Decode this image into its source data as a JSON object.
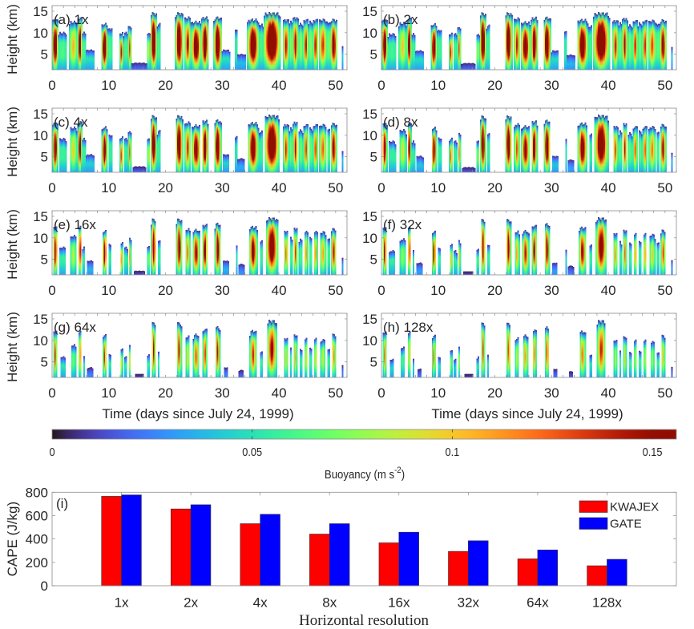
{
  "figure": {
    "background": "#ffffff",
    "text_color": "#262626",
    "axes_color": "#8c8c8c"
  },
  "chart_data": [
    {
      "type": "heatmap",
      "variable": "Buoyancy",
      "xlabel": "Time (days since July 24, 1999)",
      "ylabel": "Height (km)",
      "xlim": [
        0,
        52
      ],
      "ylim": [
        1.4,
        16.3
      ],
      "xticks": [
        0,
        10,
        20,
        30,
        40,
        50
      ],
      "minor_xtick_step": 2,
      "yticks": [
        5,
        10,
        15
      ],
      "colormap": "turbo",
      "colorbar": {
        "range": [
          0,
          0.156
        ],
        "ticks": [
          0,
          0.05,
          0.1,
          0.15
        ],
        "tick_labels": [
          "0",
          "0.05",
          "0.1",
          "0.15"
        ],
        "label": "Buoyancy (m s",
        "label_sup": "-2",
        "label_end": ")",
        "placement": "bottom"
      },
      "event_fields": [
        "t_start_day",
        "t_end_day",
        "cloud_top_km",
        "peak_buoyancy_m_s2"
      ],
      "events": [
        [
          0.0,
          1.1,
          13.0,
          0.16
        ],
        [
          1.1,
          2.6,
          10.0,
          0.06
        ],
        [
          3.0,
          4.5,
          12.5,
          0.09
        ],
        [
          4.5,
          5.3,
          13.5,
          0.15
        ],
        [
          5.3,
          5.9,
          10.0,
          0.06
        ],
        [
          5.9,
          7.5,
          6.0,
          0.04
        ],
        [
          8.7,
          9.8,
          12.0,
          0.16
        ],
        [
          9.8,
          10.6,
          11.0,
          0.06
        ],
        [
          11.9,
          12.6,
          10.0,
          0.12
        ],
        [
          12.6,
          13.4,
          10.0,
          0.06
        ],
        [
          13.4,
          14.0,
          11.5,
          0.11
        ],
        [
          14.0,
          16.7,
          3.0,
          0.03
        ],
        [
          16.7,
          17.3,
          10.0,
          0.08
        ],
        [
          17.3,
          18.5,
          14.5,
          0.17
        ],
        [
          18.5,
          19.1,
          12.0,
          0.06
        ],
        [
          21.7,
          23.1,
          14.5,
          0.17
        ],
        [
          23.3,
          24.5,
          13.5,
          0.12
        ],
        [
          24.5,
          26.3,
          12.5,
          0.15
        ],
        [
          26.3,
          27.6,
          13.5,
          0.16
        ],
        [
          28.5,
          29.9,
          13.5,
          0.17
        ],
        [
          29.9,
          31.3,
          6.0,
          0.04
        ],
        [
          32.3,
          32.6,
          11.0,
          0.04
        ],
        [
          32.6,
          34.1,
          5.0,
          0.035
        ],
        [
          34.4,
          36.5,
          13.0,
          0.16
        ],
        [
          36.5,
          37.2,
          12.0,
          0.06
        ],
        [
          37.2,
          40.3,
          14.5,
          0.18
        ],
        [
          40.7,
          41.8,
          13.0,
          0.12
        ],
        [
          41.8,
          42.4,
          12.5,
          0.07
        ],
        [
          42.4,
          43.4,
          13.5,
          0.13
        ],
        [
          43.4,
          44.3,
          12.0,
          0.07
        ],
        [
          44.3,
          45.2,
          13.0,
          0.12
        ],
        [
          45.2,
          46.0,
          12.5,
          0.07
        ],
        [
          46.0,
          46.9,
          13.0,
          0.12
        ],
        [
          47.0,
          48.5,
          13.0,
          0.11
        ],
        [
          48.5,
          49.0,
          12.5,
          0.07
        ],
        [
          49.0,
          50.3,
          13.0,
          0.14
        ],
        [
          51.0,
          51.3,
          7.0,
          0.03
        ]
      ],
      "panels": [
        {
          "id": "a",
          "label": "(a) 1x",
          "resolution": "1x",
          "intensity_scale": 1.0,
          "width_scale": 1.0,
          "top_scale": 1.0
        },
        {
          "id": "b",
          "label": "(b) 2x",
          "resolution": "2x",
          "intensity_scale": 0.97,
          "width_scale": 0.93,
          "top_scale": 0.97
        },
        {
          "id": "c",
          "label": "(c) 4x",
          "resolution": "4x",
          "intensity_scale": 0.94,
          "width_scale": 0.86,
          "top_scale": 0.92
        },
        {
          "id": "d",
          "label": "(d) 8x",
          "resolution": "8x",
          "intensity_scale": 0.9,
          "width_scale": 0.8,
          "top_scale": 0.86
        },
        {
          "id": "e",
          "label": "(e) 16x",
          "resolution": "16x",
          "intensity_scale": 0.84,
          "width_scale": 0.7,
          "top_scale": 0.78
        },
        {
          "id": "f",
          "label": "(f) 32x",
          "resolution": "32x",
          "intensity_scale": 0.78,
          "width_scale": 0.63,
          "top_scale": 0.7
        },
        {
          "id": "g",
          "label": "(g) 64x",
          "resolution": "64x",
          "intensity_scale": 0.7,
          "width_scale": 0.56,
          "top_scale": 0.62
        },
        {
          "id": "h",
          "label": "(h) 128x",
          "resolution": "128x",
          "intensity_scale": 0.63,
          "width_scale": 0.5,
          "top_scale": 0.56
        }
      ]
    },
    {
      "type": "bar",
      "panel_label": "(i)",
      "categories": [
        "1x",
        "2x",
        "4x",
        "8x",
        "16x",
        "32x",
        "64x",
        "128x"
      ],
      "series": [
        {
          "name": "KWAJEX",
          "color": "#ff0000",
          "values": [
            765,
            657,
            531,
            442,
            367,
            294,
            230,
            171
          ]
        },
        {
          "name": "GATE",
          "color": "#0000ff",
          "values": [
            777,
            693,
            611,
            531,
            458,
            385,
            306,
            226
          ]
        }
      ],
      "xlabel": "Horizontal resolution",
      "ylabel": "CAPE (J/kg)",
      "xlim": [
        0,
        9
      ],
      "ylim": [
        0,
        800
      ],
      "yticks": [
        0,
        200,
        400,
        600,
        800
      ],
      "legend": "top-right",
      "grid": false
    }
  ]
}
